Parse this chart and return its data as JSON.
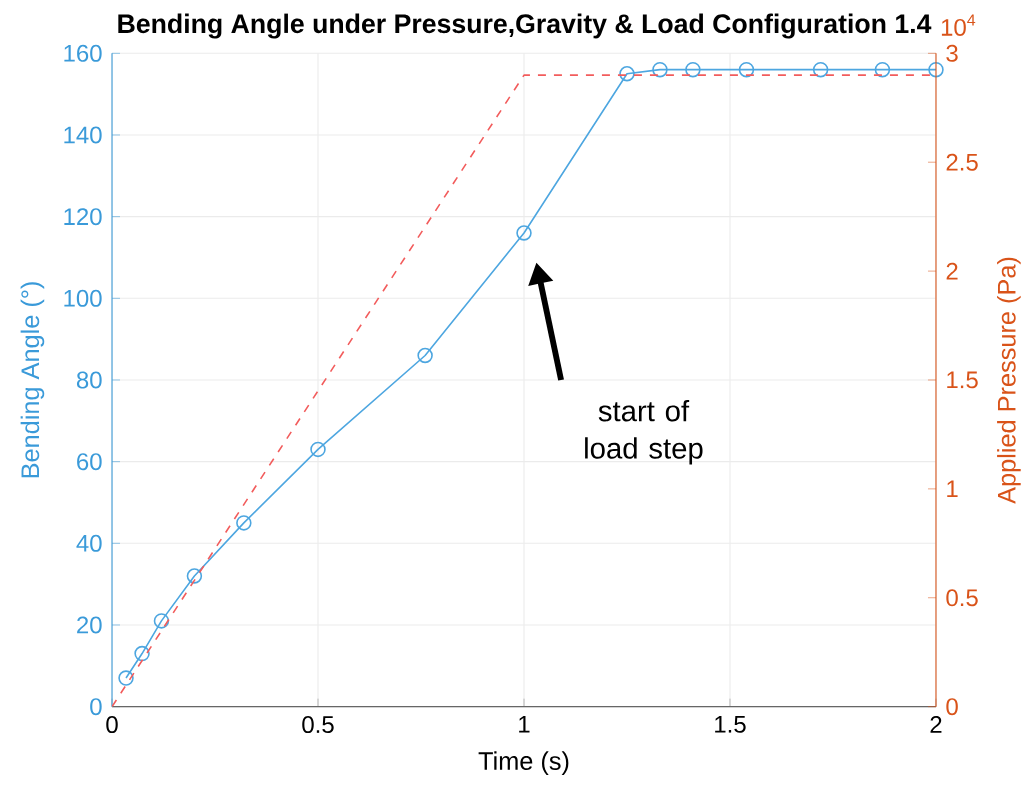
{
  "chart_data": {
    "type": "line",
    "title": "Bending Angle under Pressure,Gravity & Load Configuration 1.4",
    "xlabel": "Time (s)",
    "ylabel": "Bending Angle (°)",
    "y2label": "Applied Pressure (Pa)",
    "series": [
      {
        "color": "#4da6e0",
        "marker": "circle",
        "line_style": "solid",
        "x": [
          0.034,
          0.073,
          0.12,
          0.2,
          0.32,
          0.5,
          0.76,
          1.0,
          1.25,
          1.33,
          1.41,
          1.54,
          1.72,
          1.87,
          2.0
        ],
        "values": [
          7,
          13,
          21,
          32,
          45,
          63,
          86,
          116,
          155,
          156,
          156,
          156,
          156,
          156,
          156
        ]
      },
      {
        "color": "#f25c5c",
        "marker": "none",
        "line_style": "dashed",
        "axis": "y2",
        "x": [
          0,
          1,
          2
        ],
        "values": [
          0,
          2.9,
          2.9
        ]
      }
    ],
    "xlim": [
      0,
      2
    ],
    "xticks": [
      0,
      0.5,
      1,
      1.5,
      2
    ],
    "ylim": [
      0,
      160
    ],
    "yticks": [
      0,
      20,
      40,
      60,
      80,
      100,
      120,
      140,
      160
    ],
    "y2lim": [
      0,
      3
    ],
    "y2ticks": [
      0,
      0.5,
      1,
      1.5,
      2,
      2.5,
      3
    ],
    "annotations": [
      "10$^{4}$",
      "start of load step"
    ],
    "grid": true
  }
}
